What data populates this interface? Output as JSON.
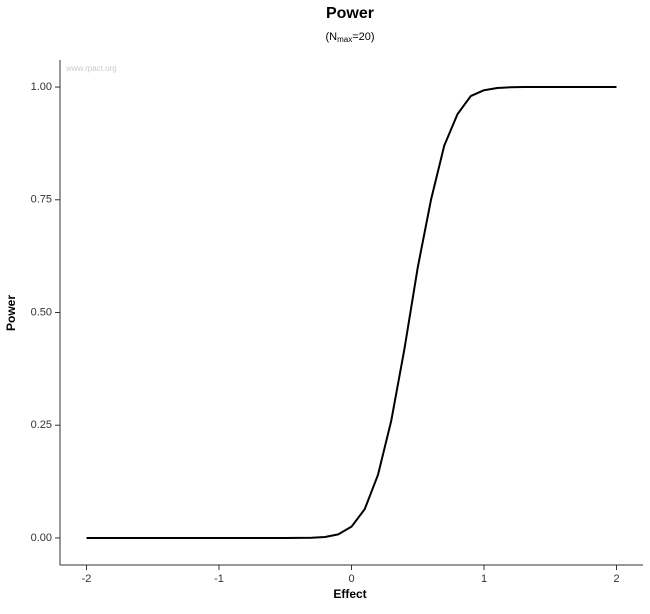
{
  "chart_data": {
    "type": "line",
    "title": "Power",
    "subtitle": [
      "(N",
      "max",
      "=20)"
    ],
    "watermark": "www.rpact.org",
    "x_label": "Effect",
    "y_label": "Power",
    "x": [
      -2,
      -1.9,
      -1.8,
      -1.7,
      -1.6,
      -1.5,
      -1.4,
      -1.3,
      -1.2,
      -1.1,
      -1,
      -0.9,
      -0.8,
      -0.7,
      -0.6,
      -0.5,
      -0.4,
      -0.3,
      -0.2,
      -0.1,
      0,
      0.1,
      0.2,
      0.3,
      0.4,
      0.5,
      0.6,
      0.7,
      0.8,
      0.9,
      1,
      1.1,
      1.2,
      1.3,
      1.4,
      1.5,
      1.6,
      1.7,
      1.8,
      1.9,
      2
    ],
    "series": [
      {
        "color": "#000000",
        "values": [
          0,
          0,
          0,
          0,
          0,
          0,
          0,
          0,
          0,
          0,
          0,
          0,
          0,
          0,
          0,
          0,
          0.0001,
          0.0005,
          0.002,
          0.008,
          0.025,
          0.064,
          0.14,
          0.26,
          0.42,
          0.6,
          0.75,
          0.87,
          0.94,
          0.98,
          0.993,
          0.998,
          0.9995,
          1,
          1,
          1,
          1,
          1,
          1,
          1,
          1
        ]
      }
    ],
    "xlim": [
      -2.2,
      2.2
    ],
    "xticks": [
      -2,
      -1,
      0,
      1,
      2
    ],
    "ylim": [
      -0.06,
      1.06
    ],
    "yticks": [
      {
        "value": 0,
        "label": "0.00"
      },
      {
        "value": 0.25,
        "label": "0.25"
      },
      {
        "value": 0.5,
        "label": "0.50"
      },
      {
        "value": 0.75,
        "label": "0.75"
      },
      {
        "value": 1,
        "label": "1.00"
      }
    ],
    "grid": false
  }
}
